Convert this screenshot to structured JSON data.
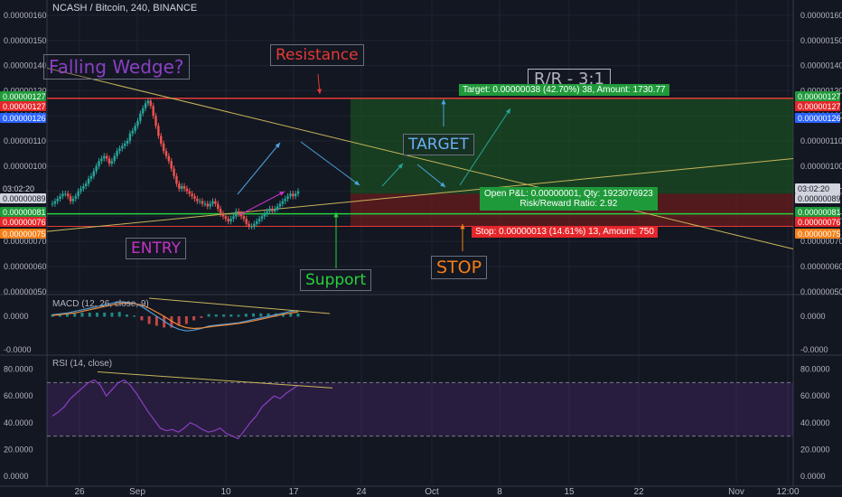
{
  "header": {
    "title": "NCASH / Bitcoin, 240, BINANCE"
  },
  "annotations": {
    "falling_wedge": "Falling Wedge?",
    "resistance": "Resistance",
    "rr": "R/R - 3:1",
    "target": "TARGET",
    "entry": "ENTRY",
    "support": "Support",
    "stop": "STOP"
  },
  "position": {
    "target_label": "Target: 0.00000038 (42.70%) 38, Amount: 1730.77",
    "pnl_line1": "Open P&L: 0.00000001, Qty: 1923076923",
    "pnl_line2": "Risk/Reward Ratio: 2.92",
    "stop_label": "Stop: 0.00000013 (14.61%) 13, Amount: 750"
  },
  "colors": {
    "background": "#131722",
    "grid": "#1e2330",
    "text": "#b2b5be",
    "up": "#26a69a",
    "down": "#ef5350",
    "target_zone": "#1b5e20",
    "stop_zone": "#7f1d1d",
    "support_line": "#27d13b",
    "resistance_line": "#e53935",
    "trendline": "#c8b45a",
    "macd": "#4f9bd6",
    "signal": "#ef8a3a",
    "rsi": "#8a3fc4"
  },
  "chart_data": [
    {
      "type": "candlestick",
      "title": "NCASH / Bitcoin, 240, BINANCE",
      "ylim": [
        5e-07,
        1.6e-06
      ],
      "ytick_labels": [
        "0.00000160",
        "0.00000150",
        "0.00000140",
        "0.00000130",
        "0.00000120",
        "0.00000110",
        "0.00000100",
        "0.00000090",
        "0.00000080",
        "0.00000070",
        "0.00000060",
        "0.00000050"
      ],
      "ytick_values": [
        160,
        150,
        140,
        130,
        120,
        110,
        100,
        90,
        80,
        70,
        60,
        50
      ],
      "xtick_labels": [
        "26",
        "Sep",
        "10",
        "17",
        "24",
        "Oct",
        "8",
        "15",
        "22",
        "Nov",
        "12:00"
      ],
      "price_badges_right": [
        {
          "text": "0.00000127",
          "color": "#1f9a3a"
        },
        {
          "text": "0.00000127",
          "color": "#e5262a"
        },
        {
          "text": "0.00000126",
          "color": "#2962ff"
        },
        {
          "text": "0.00000089",
          "color": "#d1d4dc",
          "fg": "#131722"
        },
        {
          "text": "03:02:20",
          "color": "#d1d4dc",
          "fg": "#131722"
        },
        {
          "text": "0.00000081",
          "color": "#1f9a3a"
        },
        {
          "text": "0.00000076",
          "color": "#e5262a"
        },
        {
          "text": "0.00000075",
          "color": "#f57f17"
        }
      ],
      "price_badges_left": [
        {
          "text": "0.00000127",
          "color": "#1f9a3a"
        },
        {
          "text": "0.00000127",
          "color": "#e5262a"
        },
        {
          "text": "0.00000126",
          "color": "#2962ff"
        },
        {
          "text": "03:02:20",
          "color": "#131722",
          "fg": "#d1d4dc"
        },
        {
          "text": "0.00000089",
          "color": "#d1d4dc",
          "fg": "#131722"
        },
        {
          "text": "0.00000081",
          "color": "#1f9a3a"
        },
        {
          "text": "0.00000076",
          "color": "#e5262a"
        },
        {
          "text": "0.00000075",
          "color": "#f57f17"
        }
      ],
      "levels": {
        "resistance": 127,
        "support": 81,
        "stop_line": 76,
        "target": 127,
        "entry": 89
      },
      "close_path": [
        85,
        86,
        87,
        88,
        89,
        89,
        88,
        86,
        87,
        88,
        90,
        91,
        92,
        93,
        95,
        96,
        98,
        100,
        102,
        103,
        104,
        103,
        101,
        102,
        104,
        106,
        107,
        108,
        109,
        110,
        113,
        114,
        116,
        118,
        121,
        123,
        125,
        126,
        124,
        120,
        116,
        112,
        109,
        106,
        104,
        102,
        99,
        96,
        93,
        91,
        92,
        91,
        90,
        89,
        88,
        87,
        86,
        86,
        85,
        85,
        84,
        85,
        86,
        85,
        83,
        81,
        80,
        79,
        78,
        79,
        80,
        82,
        81,
        80,
        79,
        77,
        76,
        76,
        77,
        78,
        79,
        80,
        81,
        82,
        83,
        82,
        83,
        84,
        85,
        86,
        87,
        88,
        89,
        88,
        89,
        90
      ]
    },
    {
      "type": "line",
      "title": "MACD (12, 26, close, 9)",
      "ytick_labels": [
        "0.0000",
        "-0.0000"
      ],
      "series": [
        {
          "name": "MACD",
          "values": [
            0.1,
            0.15,
            0.2,
            0.3,
            0.4,
            0.5,
            0.6,
            0.7,
            0.8,
            0.9,
            0.85,
            0.8,
            0.6,
            0.3,
            0,
            -0.3,
            -0.6,
            -0.8,
            -0.9,
            -0.85,
            -0.75,
            -0.6,
            -0.55,
            -0.5,
            -0.45,
            -0.4,
            -0.3,
            -0.2,
            -0.1,
            0,
            0.1,
            0.2,
            0.3,
            0.35
          ]
        },
        {
          "name": "Signal",
          "values": [
            0.05,
            0.1,
            0.15,
            0.2,
            0.3,
            0.4,
            0.5,
            0.6,
            0.7,
            0.78,
            0.8,
            0.78,
            0.7,
            0.5,
            0.25,
            0,
            -0.3,
            -0.55,
            -0.7,
            -0.75,
            -0.72,
            -0.66,
            -0.6,
            -0.55,
            -0.5,
            -0.44,
            -0.37,
            -0.28,
            -0.18,
            -0.08,
            0.02,
            0.12,
            0.2,
            0.27
          ]
        }
      ]
    },
    {
      "type": "line",
      "title": "RSI (14, close)",
      "ylim": [
        0,
        80
      ],
      "ytick_labels": [
        "80.0000",
        "60.0000",
        "40.0000",
        "20.0000",
        "0.0000"
      ],
      "ytick_values": [
        80,
        60,
        40,
        20,
        0
      ],
      "band": [
        30,
        70
      ],
      "series": [
        {
          "name": "RSI",
          "values": [
            45,
            48,
            52,
            58,
            62,
            66,
            70,
            72,
            68,
            60,
            65,
            70,
            72,
            68,
            62,
            55,
            48,
            42,
            36,
            34,
            35,
            33,
            36,
            40,
            38,
            35,
            33,
            34,
            36,
            32,
            30,
            28,
            34,
            40,
            45,
            52,
            56,
            60,
            58,
            62,
            65,
            68
          ]
        }
      ]
    }
  ]
}
